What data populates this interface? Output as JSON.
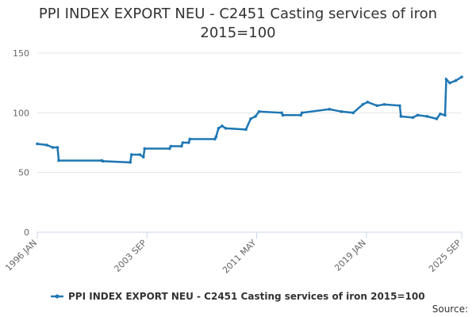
{
  "chart_data": {
    "type": "line",
    "title": "PPI INDEX EXPORT NEU - C2451 Casting services of iron 2015=100",
    "source": "Source:",
    "xlim": [
      "1996-01",
      "2025-09"
    ],
    "xticks": [
      {
        "value": "1996-01",
        "label": "1996 JAN"
      },
      {
        "value": "2003-09",
        "label": "2003 SEP"
      },
      {
        "value": "2011-05",
        "label": "2011 MAY"
      },
      {
        "value": "2019-01",
        "label": "2019 JAN"
      },
      {
        "value": "2025-09",
        "label": "2025 SEP"
      }
    ],
    "ylim": [
      0,
      150
    ],
    "yticks": [
      0,
      50,
      100,
      150
    ],
    "grid": true,
    "legend": "bottom",
    "series": [
      {
        "name": "PPI INDEX EXPORT NEU - C2451 Casting services of iron 2015=100",
        "color": "#1f77b4",
        "x": [
          "1996-01",
          "1996-09",
          "1997-02",
          "1997-06",
          "1997-07",
          "2000-07",
          "2000-08",
          "2002-07",
          "2002-08",
          "2003-03",
          "2003-06",
          "2003-07",
          "2005-04",
          "2005-05",
          "2006-02",
          "2006-03",
          "2006-08",
          "2006-09",
          "2008-06",
          "2008-07",
          "2008-09",
          "2008-12",
          "2009-03",
          "2010-08",
          "2010-12",
          "2011-04",
          "2011-07",
          "2013-02",
          "2013-03",
          "2014-06",
          "2014-07",
          "2016-06",
          "2017-04",
          "2018-02",
          "2018-10",
          "2019-02",
          "2019-10",
          "2020-04",
          "2021-05",
          "2021-06",
          "2022-04",
          "2022-08",
          "2023-04",
          "2023-12",
          "2024-03",
          "2024-07",
          "2024-08",
          "2024-11",
          "2025-04",
          "2025-09"
        ],
        "values": [
          74,
          73,
          71,
          71,
          60,
          60,
          59.5,
          58.5,
          65,
          65,
          63,
          70,
          70,
          72,
          72,
          75,
          75,
          78,
          78,
          80,
          87,
          89,
          87,
          86,
          95,
          97,
          101,
          100,
          98,
          98,
          100,
          103,
          101,
          100,
          107,
          109,
          106,
          107,
          106,
          97,
          96,
          98,
          97,
          95,
          99,
          98,
          128,
          125,
          127,
          130
        ]
      }
    ]
  }
}
